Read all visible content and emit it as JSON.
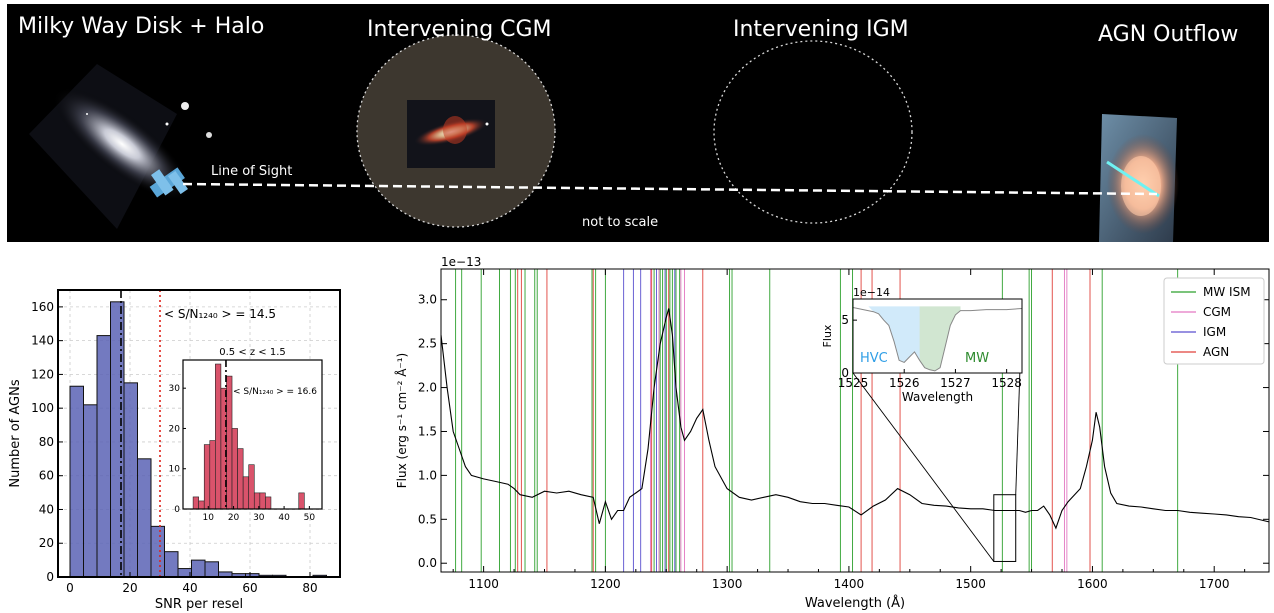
{
  "banner": {
    "labels": [
      "Milky Way Disk + Halo",
      "Intervening CGM",
      "Intervening IGM",
      "AGN Outflow"
    ],
    "line_of_sight": "Line of Sight",
    "scale_note": "not to scale",
    "icons": [
      "milky-way-galaxy-image",
      "hst-telescope-icon",
      "cgm-galaxy-image",
      "agn-outflow-image"
    ]
  },
  "chart_data": [
    {
      "type": "bar",
      "name": "snr-histogram",
      "xlabel": "SNR per resel",
      "ylabel": "Number of AGNs",
      "xlim": [
        -4,
        90
      ],
      "ylim": [
        0,
        170
      ],
      "xticks": [
        0,
        20,
        40,
        60,
        80
      ],
      "yticks": [
        0,
        20,
        40,
        60,
        80,
        100,
        120,
        140,
        160
      ],
      "bin_edges": [
        0,
        4.5,
        9,
        13.5,
        18,
        22.5,
        27,
        31.5,
        36,
        40.5,
        45,
        49.5,
        54,
        58.5,
        63,
        67.5,
        72,
        76.5,
        81,
        85.5
      ],
      "values": [
        113,
        102,
        143,
        163,
        115,
        70,
        30,
        15,
        5,
        10,
        9,
        3,
        2,
        2,
        1,
        1,
        0,
        0,
        1
      ],
      "annotation": "< S/N₁₂₄₀ > = 14.5",
      "mean_line": 17,
      "red_dotted_line": 30,
      "color": "#5a63b5",
      "inset": {
        "type": "bar",
        "title": "0.5 < z < 1.5",
        "annotation": "< S/N₁₂₄₀ > = 16.6",
        "xlim": [
          0,
          55
        ],
        "ylim": [
          0,
          37
        ],
        "xticks": [
          10,
          20,
          30,
          40,
          50
        ],
        "yticks": [
          0,
          10,
          20,
          30
        ],
        "bin_edges": [
          4,
          6.2,
          8.4,
          10.6,
          12.8,
          15,
          17.2,
          19.4,
          21.6,
          23.8,
          26,
          28.2,
          30.4,
          32.6,
          34.8,
          37,
          39.2,
          41.4,
          43.6,
          45.8,
          48
        ],
        "values": [
          3,
          2,
          16,
          17,
          36,
          30,
          33,
          20,
          15,
          8,
          11,
          4,
          4,
          3,
          0,
          0,
          0,
          0,
          0,
          4
        ],
        "mean_line": 17,
        "color": "#d9536b"
      }
    },
    {
      "type": "line",
      "name": "cos-spectrum",
      "xlabel": "Wavelength (Å)",
      "ylabel": "Flux (erg s⁻¹ cm⁻² Å⁻¹)",
      "y_offset_label": "1e−13",
      "xlim": [
        1065,
        1745
      ],
      "ylim": [
        -0.1,
        3.35
      ],
      "xticks": [
        1100,
        1200,
        1300,
        1400,
        1500,
        1600,
        1700
      ],
      "yticks": [
        "0.0",
        "0.5",
        "1.0",
        "1.5",
        "2.0",
        "2.5",
        "3.0"
      ],
      "legend": [
        "MW ISM",
        "CGM",
        "IGM",
        "AGN"
      ],
      "legend_colors": [
        "#2ca02c",
        "#e377c2",
        "#5a4fcf",
        "#e0413a"
      ],
      "legend_position": "top-right",
      "lines": {
        "MW ISM": [
          1077,
          1082,
          1098,
          1113,
          1122,
          1126,
          1134,
          1142,
          1144,
          1189,
          1192,
          1200,
          1240,
          1245,
          1247,
          1250,
          1253,
          1255,
          1258,
          1261,
          1302,
          1304,
          1335,
          1393,
          1403,
          1526,
          1548,
          1550,
          1608,
          1670
        ],
        "CGM": [
          1237,
          1244,
          1262,
          1265,
          1577,
          1579
        ],
        "IGM": [
          1215,
          1223,
          1229,
          1242,
          1249,
          1257
        ],
        "AGN": [
          1128,
          1131,
          1152,
          1190,
          1238,
          1252,
          1280,
          1410,
          1419,
          1442,
          1567,
          1598
        ]
      },
      "series": [
        {
          "name": "flux",
          "x": [
            1065,
            1070,
            1075,
            1080,
            1085,
            1090,
            1100,
            1110,
            1120,
            1125,
            1130,
            1140,
            1150,
            1160,
            1170,
            1180,
            1190,
            1195,
            1200,
            1205,
            1210,
            1215,
            1220,
            1225,
            1230,
            1235,
            1240,
            1245,
            1250,
            1252,
            1255,
            1258,
            1262,
            1265,
            1270,
            1275,
            1280,
            1285,
            1290,
            1300,
            1310,
            1320,
            1330,
            1340,
            1350,
            1360,
            1370,
            1380,
            1390,
            1400,
            1410,
            1420,
            1430,
            1440,
            1450,
            1460,
            1470,
            1480,
            1490,
            1500,
            1510,
            1520,
            1530,
            1540,
            1545,
            1550,
            1555,
            1560,
            1565,
            1570,
            1575,
            1580,
            1590,
            1595,
            1600,
            1603,
            1606,
            1610,
            1615,
            1620,
            1630,
            1640,
            1650,
            1660,
            1670,
            1680,
            1690,
            1700,
            1710,
            1720,
            1730,
            1745
          ],
          "y": [
            2.6,
            2.0,
            1.5,
            1.3,
            1.1,
            1.0,
            0.96,
            0.93,
            0.9,
            0.85,
            0.78,
            0.75,
            0.82,
            0.8,
            0.82,
            0.78,
            0.75,
            0.45,
            0.7,
            0.5,
            0.6,
            0.6,
            0.75,
            0.8,
            0.85,
            1.3,
            2.0,
            2.5,
            2.8,
            2.9,
            2.6,
            2.0,
            1.55,
            1.4,
            1.5,
            1.65,
            1.75,
            1.4,
            1.1,
            0.85,
            0.75,
            0.72,
            0.75,
            0.78,
            0.75,
            0.7,
            0.68,
            0.68,
            0.66,
            0.64,
            0.55,
            0.65,
            0.72,
            0.85,
            0.78,
            0.68,
            0.66,
            0.65,
            0.63,
            0.62,
            0.62,
            0.6,
            0.6,
            0.6,
            0.58,
            0.6,
            0.6,
            0.65,
            0.55,
            0.4,
            0.6,
            0.7,
            0.85,
            1.1,
            1.4,
            1.72,
            1.55,
            1.1,
            0.8,
            0.68,
            0.65,
            0.64,
            0.62,
            0.6,
            0.6,
            0.58,
            0.57,
            0.56,
            0.55,
            0.53,
            0.52,
            0.47
          ]
        }
      ],
      "zoom_box": {
        "x": [
          1519,
          1537
        ],
        "y": [
          0.02,
          0.78
        ]
      },
      "inset": {
        "type": "area",
        "xlabel": "Wavelength",
        "ylabel": "Flux",
        "y_offset_label": "1e−14",
        "xlim": [
          1525,
          1528.3
        ],
        "ylim": [
          0,
          7
        ],
        "xticks": [
          1525,
          1526,
          1527,
          1528
        ],
        "yticks": [
          "0",
          "5"
        ],
        "regions": [
          {
            "label": "HVC",
            "x": [
              1525.3,
              1526.3
            ],
            "color": "#2f9ee6"
          },
          {
            "label": "MW",
            "x": [
              1526.3,
              1527.1
            ],
            "color": "#2e8b2e"
          }
        ],
        "x": [
          1525.0,
          1525.2,
          1525.4,
          1525.5,
          1525.6,
          1525.7,
          1525.8,
          1525.9,
          1526.0,
          1526.1,
          1526.2,
          1526.3,
          1526.4,
          1526.5,
          1526.6,
          1526.7,
          1526.8,
          1526.9,
          1527.0,
          1527.1,
          1527.3,
          1527.6,
          1528.0,
          1528.3
        ],
        "y": [
          6.2,
          6.0,
          5.8,
          5.6,
          5.0,
          4.5,
          3.0,
          1.2,
          1.0,
          1.5,
          2.0,
          1.2,
          0.5,
          0.3,
          0.2,
          0.5,
          2.5,
          4.5,
          5.5,
          5.9,
          5.9,
          6.0,
          6.0,
          6.1
        ]
      }
    }
  ]
}
